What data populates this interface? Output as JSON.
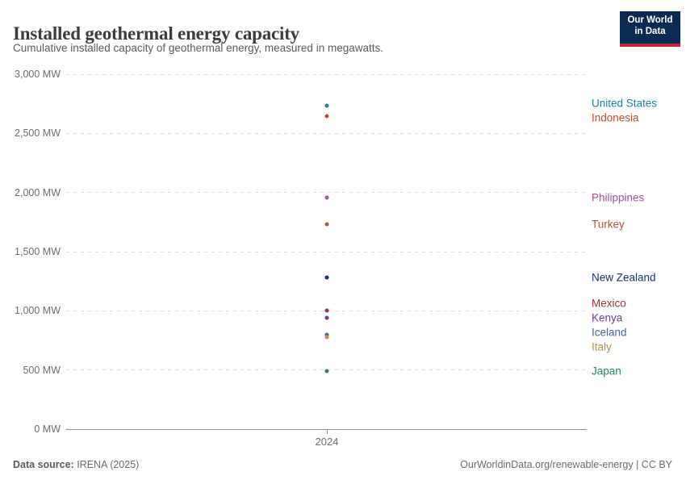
{
  "header": {
    "title": "Installed geothermal energy capacity",
    "subtitle": "Cumulative installed capacity of geothermal energy, measured in megawatts.",
    "logo": {
      "line1": "Our World",
      "line2": "in Data",
      "bg_color": "#0a2a52",
      "accent_color": "#c42530"
    }
  },
  "chart_data": {
    "type": "scatter",
    "title": "Installed geothermal energy capacity",
    "xlabel": "",
    "ylabel": "megawatts (MW)",
    "year": 2024,
    "x_categories": [
      "2024"
    ],
    "ylim": [
      0,
      3000
    ],
    "yticks": [
      0,
      500,
      1000,
      1500,
      2000,
      2500,
      3000
    ],
    "ytick_labels": [
      "0 MW",
      "500 MW",
      "1,000 MW",
      "1,500 MW",
      "2,000 MW",
      "2,500 MW",
      "3,000 MW"
    ],
    "grid": "horizontal-dashed",
    "legend_position": "right-inline-labels",
    "series": [
      {
        "name": "United States",
        "x": 2024,
        "value": 2735,
        "color": "#1F839D"
      },
      {
        "name": "Indonesia",
        "x": 2024,
        "value": 2645,
        "color": "#C14F2E"
      },
      {
        "name": "Philippines",
        "x": 2024,
        "value": 1955,
        "color": "#A2559C"
      },
      {
        "name": "Turkey",
        "x": 2024,
        "value": 1730,
        "color": "#AE5B3B"
      },
      {
        "name": "New Zealand",
        "x": 2024,
        "value": 1280,
        "color": "#1D3465"
      },
      {
        "name": "Mexico",
        "x": 2024,
        "value": 1000,
        "color": "#983843"
      },
      {
        "name": "Kenya",
        "x": 2024,
        "value": 940,
        "color": "#6D3E91"
      },
      {
        "name": "Iceland",
        "x": 2024,
        "value": 795,
        "color": "#4C6A9C"
      },
      {
        "name": "Italy",
        "x": 2024,
        "value": 775,
        "color": "#BC8E5A"
      },
      {
        "name": "Japan",
        "x": 2024,
        "value": 490,
        "color": "#2C8465"
      }
    ]
  },
  "footer": {
    "source_label": "Data source:",
    "source_value": " IRENA (2025)",
    "credit": "OurWorldinData.org/renewable-energy | CC BY"
  }
}
